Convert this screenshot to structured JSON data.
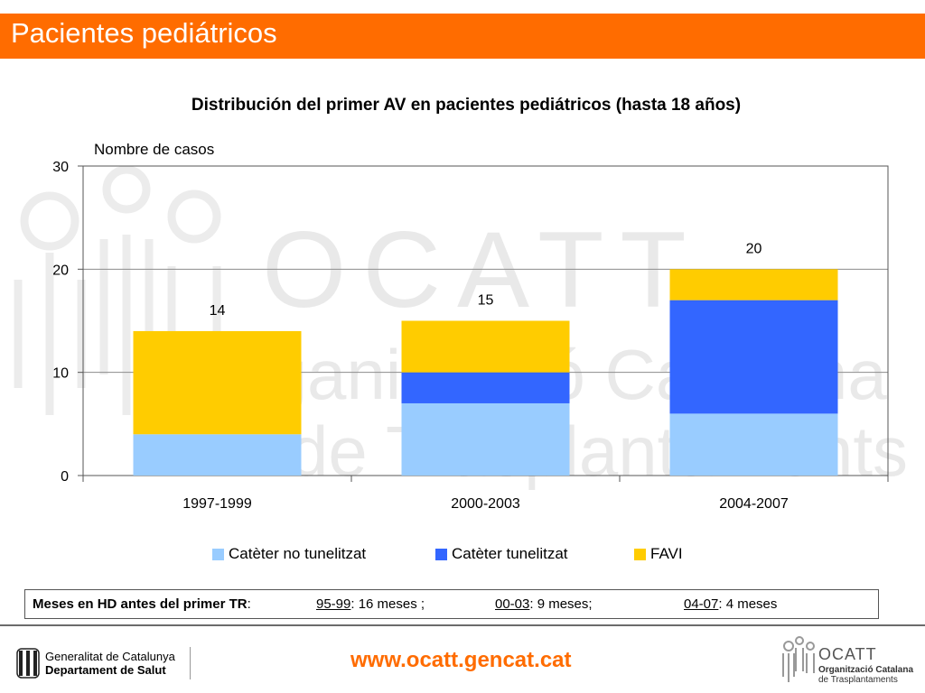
{
  "header": {
    "title": "Pacientes pediátricos"
  },
  "watermark": {
    "line1": "OCATT",
    "line2": "Organització Catalana",
    "line3": "de Trasplantaments"
  },
  "chart_data": {
    "type": "bar",
    "stacked": true,
    "title": "Distribución del primer AV en pacientes pediátricos (hasta 18 años)",
    "ylabel": "Nombre de casos",
    "xlabel": "",
    "ylim": [
      0,
      30
    ],
    "yticks": [
      0,
      10,
      20,
      30
    ],
    "grid": true,
    "legend_position": "bottom",
    "categories": [
      "1997-1999",
      "2000-2003",
      "2004-2007"
    ],
    "series": [
      {
        "name": "Catèter no tunelitzat",
        "color": "#99ccff",
        "values": [
          4,
          7,
          6
        ]
      },
      {
        "name": "Catèter tunelitzat",
        "color": "#3366ff",
        "values": [
          0,
          3,
          11
        ]
      },
      {
        "name": "FAVI",
        "color": "#ffcc00",
        "values": [
          10,
          5,
          3
        ]
      }
    ],
    "totals": [
      "14",
      "15",
      "20"
    ]
  },
  "info": {
    "label": "Meses en HD antes del primer TR",
    "colon": ":",
    "items": [
      {
        "period": "95-99",
        "text": ": 16 meses ;"
      },
      {
        "period": "00-03",
        "text": ": 9 meses;"
      },
      {
        "period": "04-07",
        "text": ": 4 meses"
      }
    ]
  },
  "footer": {
    "gencat_line1": "Generalitat de Catalunya",
    "gencat_line2": "Departament de Salut",
    "website": "www.ocatt.gencat.cat",
    "ocatt_name": "OCATT",
    "ocatt_sub1": "Organització Catalana",
    "ocatt_sub2": "de Trasplantaments"
  }
}
